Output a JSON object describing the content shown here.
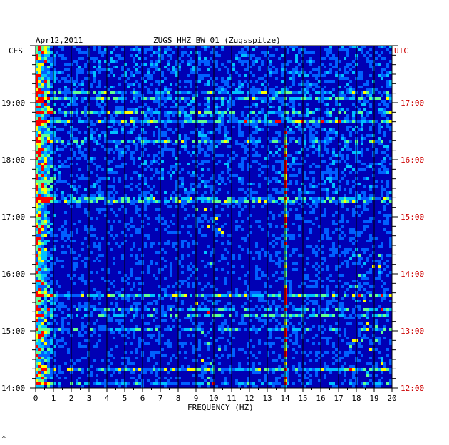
{
  "header": {
    "date": "Apr12,2011",
    "station": "ZUGS HHZ BW 01 (Zugsspitze)",
    "left_zone": "CES",
    "right_zone": "UTC"
  },
  "footer": {
    "corner_mark": "*"
  },
  "colors": {
    "background": "#0000b4",
    "left_labels": "#000000",
    "right_labels": "#cc0000",
    "gridline": "#000000",
    "spectrum_low": "#0000a0",
    "spectrum_mid": "#00c0ff",
    "spectrum_high": "#ffff00",
    "spectrum_peak": "#ff0000"
  },
  "chart_data": {
    "type": "heatmap",
    "title": "ZUGS HHZ BW 01 (Zugsspitze)",
    "xlabel": "FREQUENCY (HZ)",
    "xlim": [
      0,
      20
    ],
    "x_ticks": [
      "0",
      "1",
      "2",
      "3",
      "4",
      "5",
      "6",
      "7",
      "8",
      "9",
      "10",
      "11",
      "12",
      "13",
      "14",
      "15",
      "16",
      "17",
      "18",
      "19",
      "20"
    ],
    "left_axis": {
      "zone": "CES",
      "ticks": [
        {
          "label": "14:00",
          "hour": 14
        },
        {
          "label": "15:00",
          "hour": 15
        },
        {
          "label": "16:00",
          "hour": 16
        },
        {
          "label": "17:00",
          "hour": 17
        },
        {
          "label": "18:00",
          "hour": 18
        },
        {
          "label": "19:00",
          "hour": 19
        }
      ],
      "range_hours": [
        14,
        20.0
      ]
    },
    "right_axis": {
      "zone": "UTC",
      "ticks": [
        {
          "label": "12:00",
          "hour": 12
        },
        {
          "label": "13:00",
          "hour": 13
        },
        {
          "label": "14:00",
          "hour": 14
        },
        {
          "label": "15:00",
          "hour": 15
        },
        {
          "label": "16:00",
          "hour": 16
        },
        {
          "label": "17:00",
          "hour": 17
        }
      ]
    },
    "features": [
      {
        "name": "persistent line",
        "frequency_hz": 13.9,
        "hour_from": 14.0,
        "hour_to": 18.5
      },
      {
        "name": "low frequency energy",
        "frequency_hz": [
          0,
          1
        ],
        "hour_from": 14.0,
        "hour_to": 20.0
      },
      {
        "name": "broadband band",
        "hour": 15.65
      },
      {
        "name": "broadband band",
        "hour": 14.35
      },
      {
        "name": "broadband band",
        "hour": 17.3
      },
      {
        "name": "broadband band",
        "hour": 18.7
      }
    ]
  }
}
